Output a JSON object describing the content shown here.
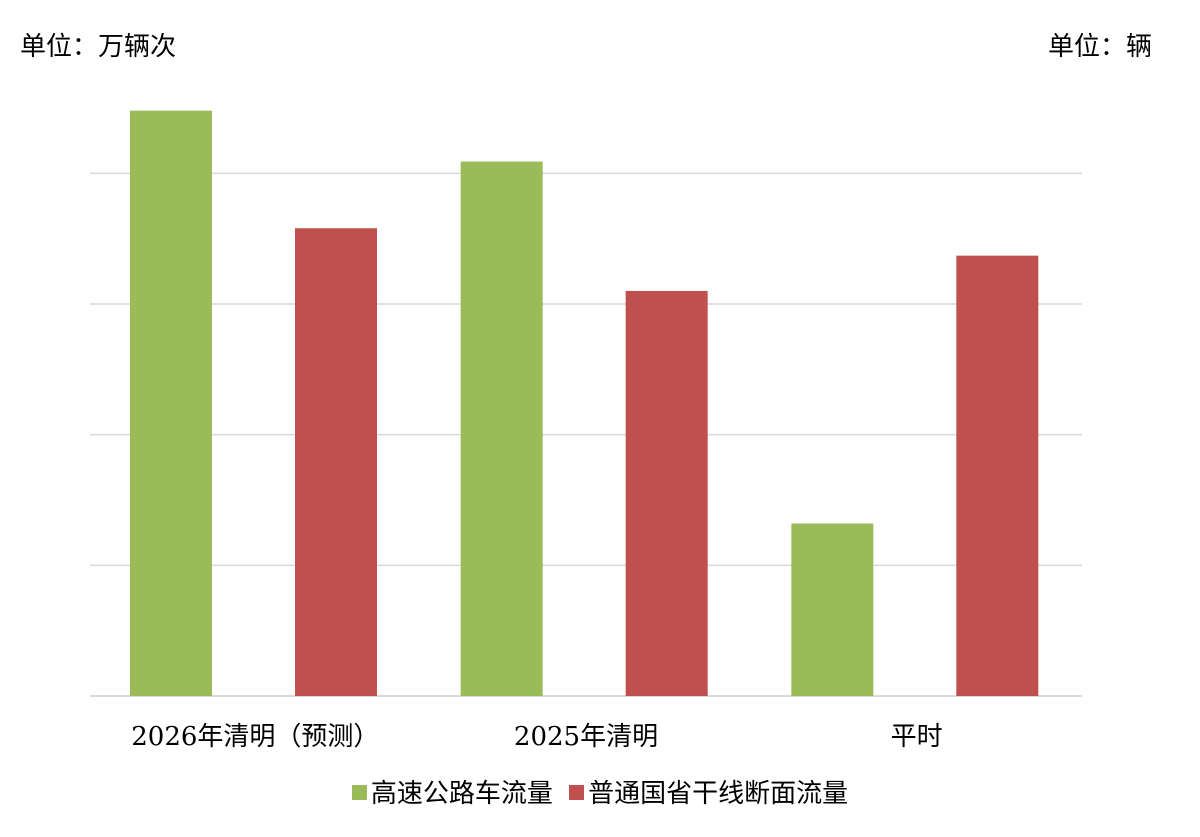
{
  "units": {
    "left": "单位：万辆次",
    "right": "单位：辆"
  },
  "colors": {
    "series1": "#9bbb59",
    "series2": "#c0504d",
    "grid": "#d9d9d9",
    "axis": "#d9d9d9"
  },
  "chart_data": {
    "type": "bar",
    "categories": [
      "2026年清明（预测）",
      "2025年清明",
      "平时"
    ],
    "series": [
      {
        "name": "高速公路车流量",
        "axis": "left",
        "values": [
          4.48,
          4.09,
          1.32
        ]
      },
      {
        "name": "普通国省干线断面流量",
        "axis": "right",
        "values": [
          3.58,
          3.1,
          3.37
        ]
      }
    ],
    "ylim": [
      0,
      4.5
    ],
    "gridlines": [
      1,
      2,
      3,
      4
    ],
    "grid": true,
    "legend_position": "bottom"
  }
}
